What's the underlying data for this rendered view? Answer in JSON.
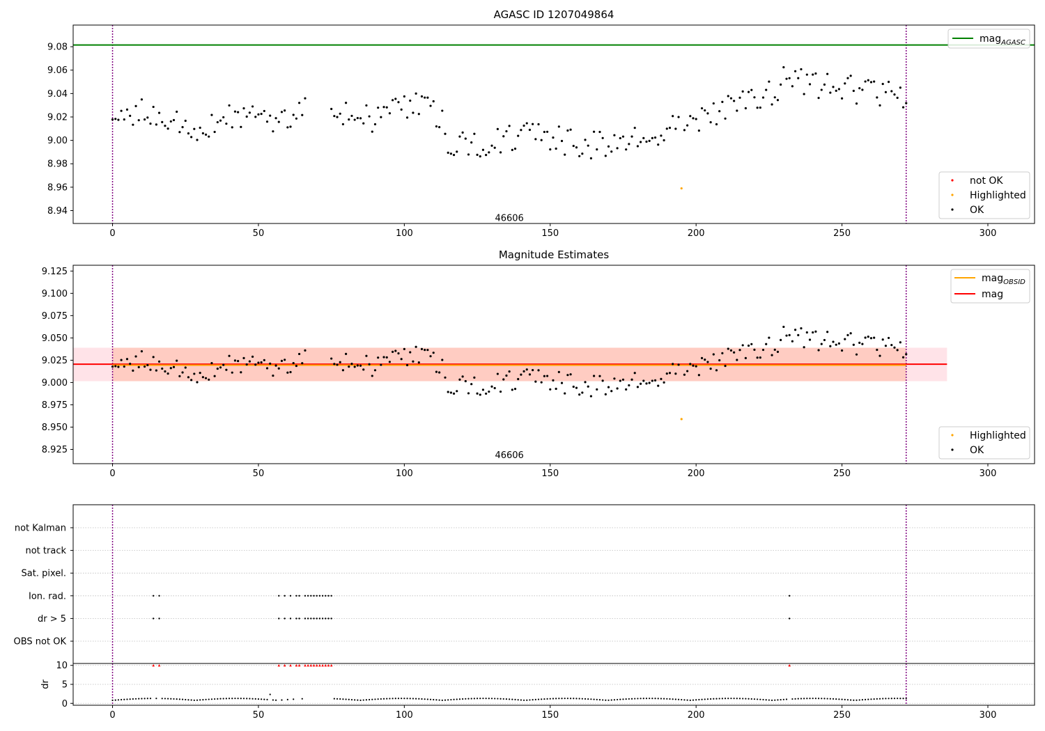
{
  "chart_data": [
    {
      "id": "panel1",
      "type": "scatter",
      "title": "AGASC ID 1207049864",
      "xlim": [
        -13.5,
        316
      ],
      "ylim": [
        8.929,
        9.0985
      ],
      "xticks": [
        0,
        50,
        100,
        150,
        200,
        250,
        300
      ],
      "yticks": [
        8.94,
        8.96,
        8.98,
        9.0,
        9.02,
        9.04,
        9.06,
        9.08
      ],
      "ytick_decimals": 2,
      "grid": false,
      "vlines": [
        0,
        272
      ],
      "hline": {
        "name": "mag",
        "subscript": "AGASC",
        "y": 9.0815,
        "color": "#008000"
      },
      "annotation": {
        "text": "46606",
        "x": 136,
        "y": 8.9335
      },
      "highlighted_points": [
        {
          "x": 195,
          "y": 8.959
        }
      ],
      "legend_upper": {
        "position": "upper-right",
        "entries": [
          {
            "name": "mag",
            "subscript": "AGASC",
            "kind": "line",
            "color": "#008000"
          }
        ]
      },
      "legend_lower": {
        "position": "lower-right",
        "entries": [
          {
            "name": "not OK",
            "kind": "point",
            "color": "#ff0000"
          },
          {
            "name": "Highlighted",
            "kind": "point",
            "color": "#ffa500"
          },
          {
            "name": "OK",
            "kind": "point",
            "color": "#000000"
          }
        ]
      }
    },
    {
      "id": "panel2",
      "type": "scatter",
      "title": "Magnitude Estimates",
      "xlim": [
        -13.5,
        316
      ],
      "ylim": [
        8.909,
        9.1315
      ],
      "xticks": [
        0,
        50,
        100,
        150,
        200,
        250,
        300
      ],
      "yticks": [
        8.925,
        8.95,
        8.975,
        9.0,
        9.025,
        9.05,
        9.075,
        9.1,
        9.125
      ],
      "ytick_decimals": 3,
      "grid": false,
      "vlines": [
        0,
        272
      ],
      "mag_line": {
        "name": "mag",
        "y": 9.0205,
        "color": "#ff0000",
        "band": [
          9.0015,
          9.039
        ],
        "band_x": [
          -13.5,
          286
        ],
        "band_color": "#ffc0cb"
      },
      "obsid_line": {
        "name": "mag",
        "subscript": "OBSID",
        "y": 9.0195,
        "color": "#ffa500",
        "band": [
          9.0015,
          9.039
        ],
        "band_x": [
          0,
          272
        ],
        "band_color": "#ffa07a"
      },
      "annotation": {
        "text": "46606",
        "x": 136,
        "y": 8.9185
      },
      "highlighted_points": [
        {
          "x": 195,
          "y": 8.959
        }
      ],
      "legend_upper": {
        "position": "upper-right",
        "entries": [
          {
            "name": "mag",
            "subscript": "OBSID",
            "kind": "line",
            "color": "#ffa500"
          },
          {
            "name": "mag",
            "kind": "line",
            "color": "#ff0000"
          }
        ]
      },
      "legend_lower": {
        "position": "lower-right",
        "entries": [
          {
            "name": "Highlighted",
            "kind": "point",
            "color": "#ffa500"
          },
          {
            "name": "OK",
            "kind": "point",
            "color": "#000000"
          }
        ]
      }
    },
    {
      "id": "panel3",
      "type": "scatter",
      "title": "",
      "xlim": [
        -13.5,
        316
      ],
      "categories": [
        "OBS not OK",
        "dr > 5",
        "Ion. rad.",
        "Sat. pixel.",
        "not track",
        "not Kalman"
      ],
      "flag_rows": {
        "dr > 5": [
          14,
          16,
          57,
          59,
          61,
          63,
          64,
          66,
          67,
          68,
          69,
          70,
          71,
          72,
          73,
          74,
          75,
          232
        ],
        "Ion. rad.": [
          14,
          16,
          57,
          59,
          61,
          63,
          64,
          66,
          67,
          68,
          69,
          70,
          71,
          72,
          73,
          74,
          75,
          232
        ]
      },
      "grid": true,
      "vlines": [
        0,
        272
      ]
    },
    {
      "id": "panel4",
      "type": "scatter",
      "title": "",
      "ylabel": "dr",
      "xlim": [
        -13.5,
        316
      ],
      "ylim": [
        -0.5,
        10.5
      ],
      "xticks": [
        0,
        50,
        100,
        150,
        200,
        250,
        300
      ],
      "yticks": [
        0,
        5,
        10
      ],
      "ytick_decimals": 0,
      "grid": true,
      "vlines": [
        0,
        272
      ],
      "capped_points": [
        14,
        16,
        57,
        59,
        61,
        63,
        64,
        66,
        67,
        68,
        69,
        70,
        71,
        72,
        73,
        74,
        75,
        232
      ],
      "cap_value": 10
    }
  ]
}
